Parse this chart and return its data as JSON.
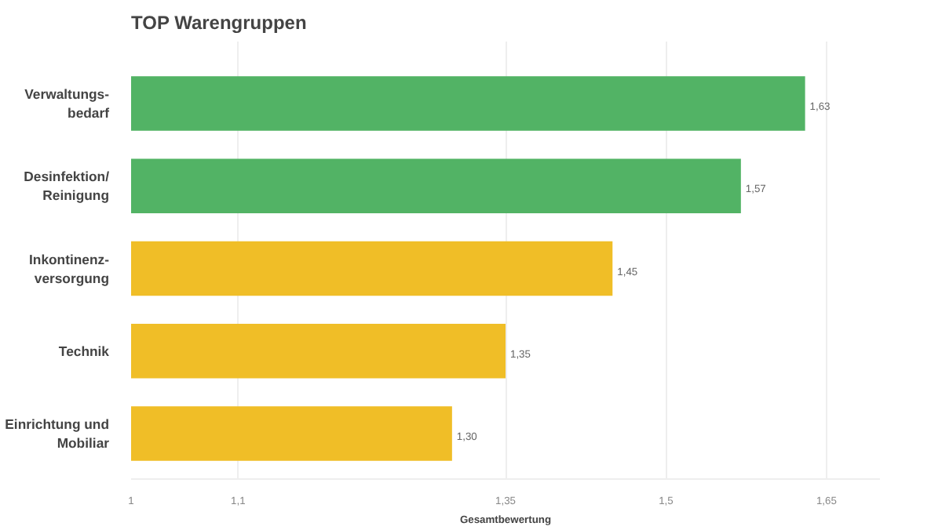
{
  "chart_data": {
    "type": "bar",
    "orientation": "horizontal",
    "title": "TOP Warengruppen",
    "xlabel": "Gesamtbewertung",
    "categories": [
      "Verwaltungs-\nbedarf",
      "Desinfektion/\nReinigung",
      "Inkontinenz-\nversorgung",
      "Technik",
      "Einrichtung und\nMobiliar"
    ],
    "values": [
      1.63,
      1.57,
      1.45,
      1.35,
      1.3
    ],
    "colors": [
      "#52b365",
      "#52b365",
      "#f0be27",
      "#f0be27",
      "#f0be27"
    ],
    "value_labels": [
      "1,63",
      "1,57",
      "1,45",
      "1,35",
      "1,30"
    ],
    "xlim": [
      1,
      1.7
    ],
    "xticks": [
      {
        "value": 1,
        "label": "1"
      },
      {
        "value": 1.1,
        "label": "1,1"
      },
      {
        "value": 1.35,
        "label": "1,35"
      },
      {
        "value": 1.5,
        "label": "1,5"
      },
      {
        "value": 1.65,
        "label": "1,65"
      }
    ],
    "grid": "x"
  }
}
